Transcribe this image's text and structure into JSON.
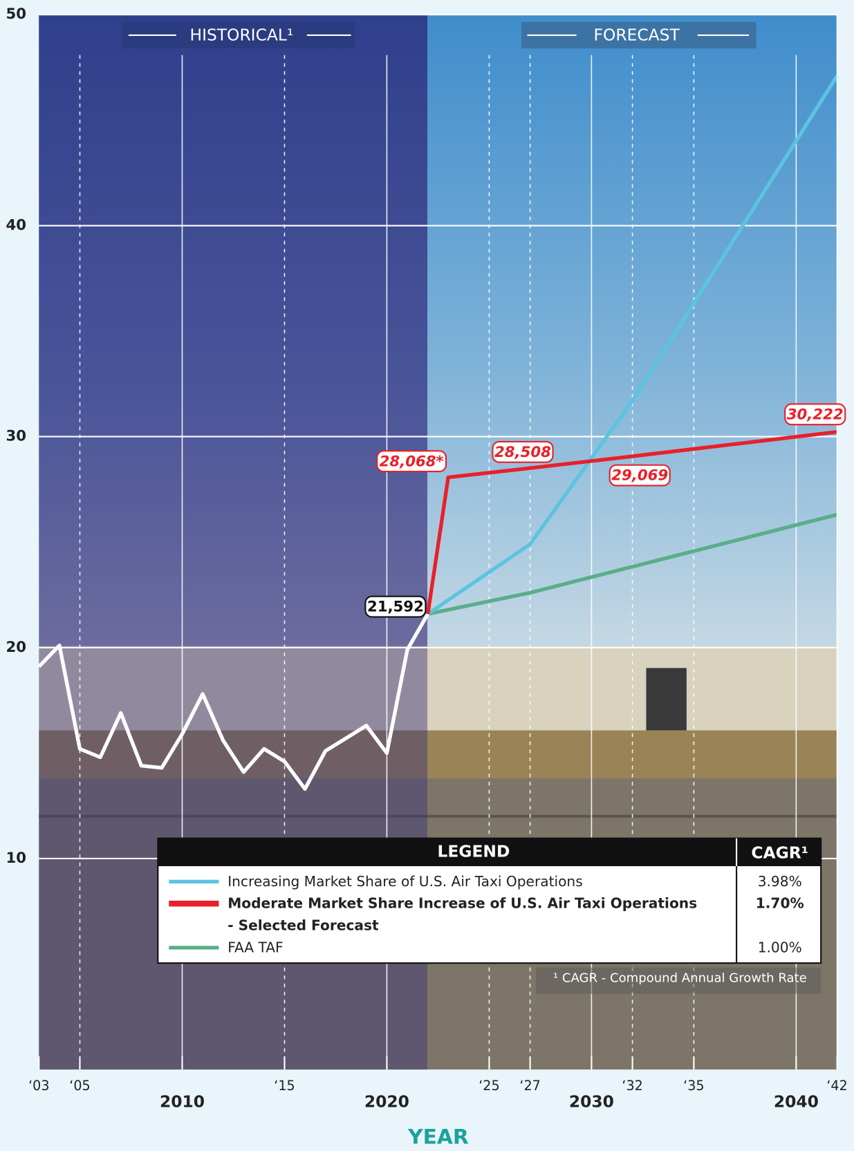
{
  "chart_data": {
    "type": "line",
    "period_labels": [
      "HISTORICAL¹",
      "FORECAST"
    ],
    "xlabel": "YEAR",
    "xlim": [
      2003,
      2042
    ],
    "ylim": [
      0,
      50
    ],
    "yticks": [
      10,
      20,
      30,
      40,
      50
    ],
    "xticks": [
      {
        "value": 2003,
        "label": "‘03"
      },
      {
        "value": 2005,
        "label": "‘05"
      },
      2010,
      {
        "value": 2015,
        "label": "‘15"
      },
      2020,
      {
        "value": 2025,
        "label": "‘25"
      },
      {
        "value": 2027,
        "label": "‘27"
      },
      2030,
      {
        "value": 2032,
        "label": "‘32"
      },
      {
        "value": 2035,
        "label": "‘35"
      },
      2040,
      {
        "value": 2042,
        "label": "‘42"
      }
    ],
    "grid": true,
    "series": [
      {
        "color": "#ffffff",
        "x": [
          2003,
          2004,
          2005,
          2006,
          2007,
          2008,
          2009,
          2010,
          2011,
          2012,
          2013,
          2014,
          2015,
          2016,
          2017,
          2018,
          2019,
          2020,
          2021,
          2022
        ],
        "values": [
          19.1,
          20.1,
          15.2,
          14.8,
          16.9,
          14.4,
          14.3,
          15.9,
          17.8,
          15.6,
          14.1,
          15.2,
          14.6,
          13.3,
          15.1,
          15.7,
          16.3,
          15.0,
          19.9,
          21.592
        ],
        "value_labels": [
          null,
          null,
          null,
          null,
          null,
          null,
          null,
          null,
          null,
          null,
          null,
          null,
          null,
          null,
          null,
          null,
          null,
          null,
          null,
          "21,592"
        ]
      },
      {
        "name": "Increasing Market Share of U.S. Air Taxi Operations",
        "cagr": "3.98%",
        "color": "#5bc4e0",
        "x": [
          2022,
          2027,
          2032,
          2042
        ],
        "values": [
          21.592,
          24.9,
          31.7,
          47.1
        ]
      },
      {
        "name": "Moderate Market Share Increase of U.S. Air Taxi Operations",
        "name_line2": "- Selected Forecast",
        "cagr": "1.70%",
        "color": "#e8202a",
        "x": [
          2022,
          2023,
          2027,
          2032,
          2042
        ],
        "values": [
          21.592,
          28.068,
          28.508,
          29.069,
          30.222
        ],
        "value_labels": [
          null,
          "28,068*",
          "28,508",
          "29,069",
          "30,222"
        ]
      },
      {
        "name": "FAA TAF",
        "cagr": "1.00%",
        "color": "#5aae8a",
        "x": [
          2022,
          2027,
          2042
        ],
        "values": [
          21.592,
          22.6,
          26.3
        ]
      }
    ],
    "legend": {
      "title": "LEGEND",
      "column": "CAGR¹",
      "footnote": "¹ CAGR - Compound Annual Growth Rate"
    }
  }
}
